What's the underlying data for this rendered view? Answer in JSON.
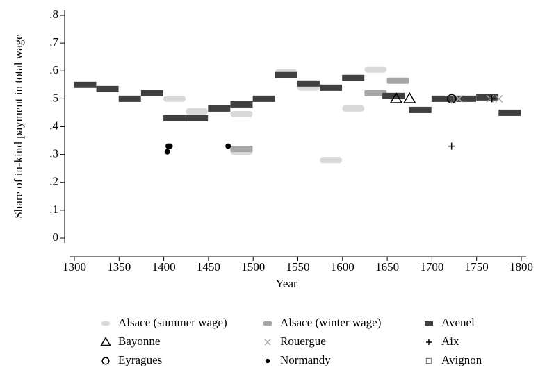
{
  "chart_data": {
    "type": "scatter",
    "xlabel": "Year",
    "ylabel": "Share of in-kind payment in total wage",
    "xlim": [
      1300,
      1800
    ],
    "xticks": [
      1300,
      1350,
      1400,
      1450,
      1500,
      1550,
      1600,
      1650,
      1700,
      1750,
      1800
    ],
    "ylim": [
      0,
      0.8
    ],
    "yticks": [
      0,
      {
        "value": 0.1,
        "label": ".1"
      },
      {
        "value": 0.2,
        "label": ".2"
      },
      {
        "value": 0.3,
        "label": ".3"
      },
      {
        "value": 0.4,
        "label": ".4"
      },
      {
        "value": 0.5,
        "label": ".5"
      },
      {
        "value": 0.6,
        "label": ".6"
      },
      {
        "value": 0.7,
        "label": ".7"
      },
      {
        "value": 0.8,
        "label": ".8"
      }
    ],
    "series": [
      {
        "name": "Alsace (summer wage)",
        "color": "#d9d9d9",
        "marker": "bar",
        "x": [
          1412,
          1437,
          1487,
          1487,
          1537,
          1562,
          1587,
          1612,
          1637
        ],
        "values": [
          0.5,
          0.455,
          0.445,
          0.31,
          0.595,
          0.54,
          0.28,
          0.465,
          0.605
        ]
      },
      {
        "name": "Alsace (winter wage)",
        "color": "#a6a6a6",
        "marker": "bar",
        "x": [
          1487,
          1637,
          1662
        ],
        "values": [
          0.32,
          0.52,
          0.565
        ]
      },
      {
        "name": "Avenel",
        "color": "#404040",
        "marker": "bar",
        "x": [
          1312,
          1337,
          1362,
          1387,
          1412,
          1437,
          1462,
          1487,
          1512,
          1537,
          1562,
          1587,
          1612,
          1657,
          1687,
          1712,
          1737,
          1762,
          1787
        ],
        "values": [
          0.55,
          0.535,
          0.5,
          0.52,
          0.43,
          0.43,
          0.465,
          0.48,
          0.5,
          0.585,
          0.555,
          0.54,
          0.575,
          0.51,
          0.46,
          0.5,
          0.5,
          0.505,
          0.45
        ]
      },
      {
        "name": "Bayonne",
        "color": "#000000",
        "marker": "triangle",
        "x": [
          1660,
          1675
        ],
        "values": [
          0.5,
          0.5
        ]
      },
      {
        "name": "Rouergue",
        "color": "#a6a6a6",
        "marker": "cross",
        "x": [
          1730,
          1765,
          1775
        ],
        "values": [
          0.5,
          0.5,
          0.5
        ]
      },
      {
        "name": "Aix",
        "color": "#000000",
        "marker": "plus",
        "x": [
          1722,
          1767
        ],
        "values": [
          0.33,
          0.5
        ]
      },
      {
        "name": "Eyragues",
        "color": "#000000",
        "marker": "circle",
        "x": [
          1722
        ],
        "values": [
          0.5
        ]
      },
      {
        "name": "Normandy",
        "color": "#000000",
        "marker": "dot",
        "x": [
          1404,
          1405,
          1407,
          1472
        ],
        "values": [
          0.31,
          0.33,
          0.33,
          0.33
        ]
      },
      {
        "name": "Avignon",
        "color": "#808080",
        "marker": "square",
        "x": [],
        "values": []
      }
    ]
  }
}
